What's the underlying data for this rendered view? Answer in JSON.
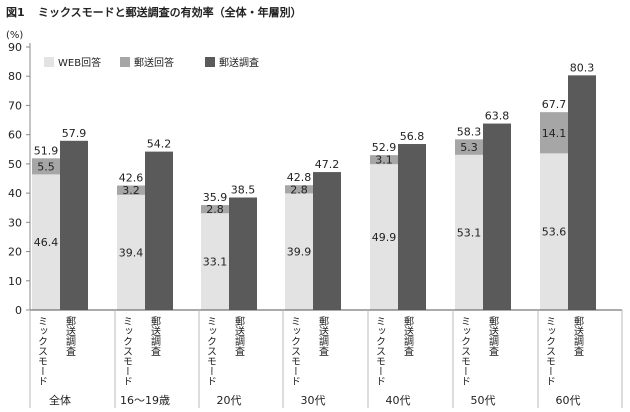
{
  "figure_label": "図1",
  "chart_data": {
    "type": "bar",
    "title": "ミックスモードと郵送調査の有効率（全体・年層別）",
    "ylabel": "(%)",
    "ylim": [
      0,
      90
    ],
    "yticks": [
      0,
      10,
      20,
      30,
      40,
      50,
      60,
      70,
      80,
      90
    ],
    "grid": false,
    "legend_position": "top-left",
    "categories": [
      "全体",
      "16～19歳",
      "20代",
      "30代",
      "40代",
      "50代",
      "60代"
    ],
    "bar_labels": [
      "ミックスモード",
      "郵送調査"
    ],
    "series": [
      {
        "name": "WEB回答",
        "color": "#e3e3e3",
        "values": [
          46.4,
          39.4,
          33.1,
          39.9,
          49.9,
          53.1,
          53.6
        ]
      },
      {
        "name": "郵送回答",
        "color": "#a6a6a6",
        "values": [
          5.5,
          3.2,
          2.8,
          2.8,
          3.1,
          5.3,
          14.1
        ]
      },
      {
        "name": "郵送調査",
        "color": "#5a5a5a",
        "values": [
          57.9,
          54.2,
          38.5,
          47.2,
          56.8,
          63.8,
          80.3
        ]
      }
    ],
    "mixed_totals": [
      51.9,
      42.6,
      35.9,
      42.8,
      52.9,
      58.3,
      67.7
    ]
  }
}
